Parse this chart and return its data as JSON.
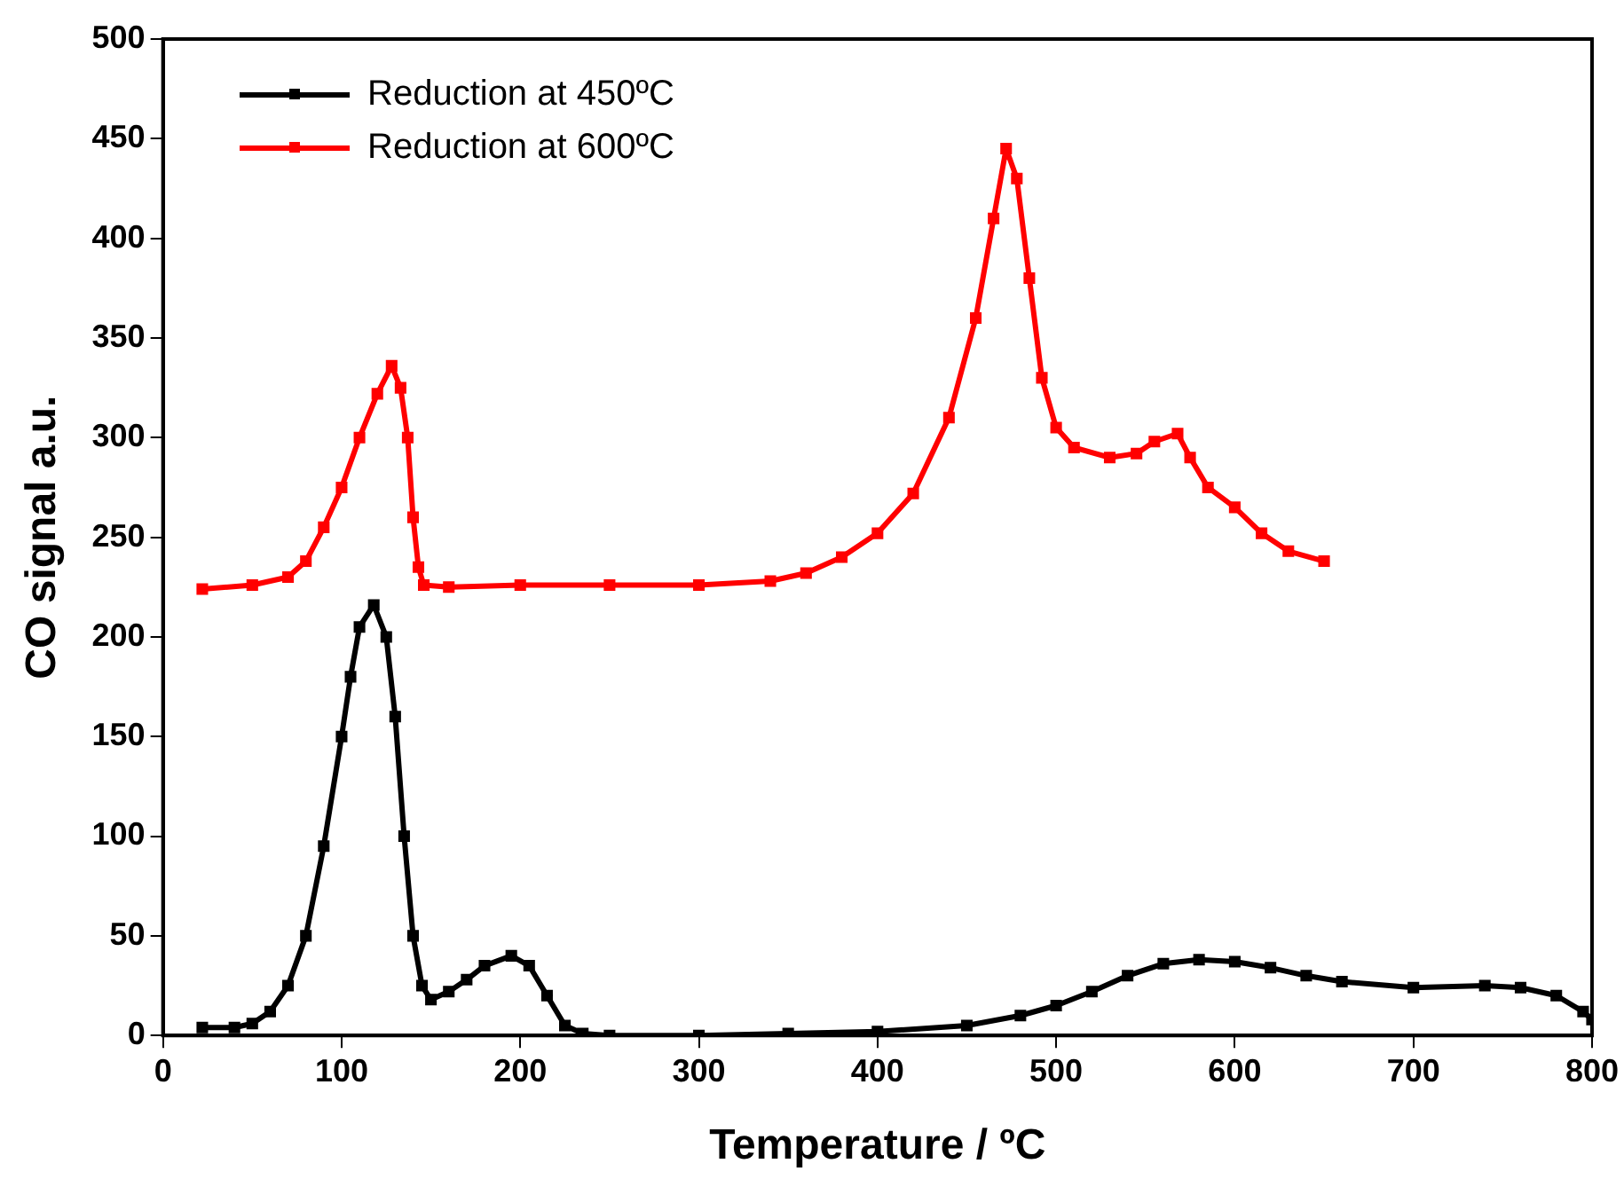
{
  "chart_data": {
    "type": "line",
    "xlabel": "Temperature / ºC",
    "ylabel": "CO signal a.u.",
    "xlim": [
      0,
      800
    ],
    "ylim": [
      0,
      500
    ],
    "xticks": [
      0,
      100,
      200,
      300,
      400,
      500,
      600,
      700,
      800
    ],
    "yticks": [
      0,
      50,
      100,
      150,
      200,
      250,
      300,
      350,
      400,
      450,
      500
    ],
    "grid": false,
    "legend": "top left",
    "marker": "square",
    "line_style": "solid",
    "series": [
      {
        "name": "Reduction at 450ºC",
        "color": "#000000",
        "x": [
          22,
          40,
          50,
          60,
          70,
          80,
          90,
          100,
          105,
          110,
          118,
          125,
          130,
          135,
          140,
          145,
          150,
          160,
          170,
          180,
          195,
          205,
          215,
          225,
          235,
          250,
          300,
          350,
          400,
          450,
          480,
          500,
          520,
          540,
          560,
          580,
          600,
          620,
          640,
          660,
          700,
          740,
          760,
          780,
          795,
          800
        ],
        "values": [
          4,
          4,
          6,
          12,
          25,
          50,
          95,
          150,
          180,
          205,
          216,
          200,
          160,
          100,
          50,
          25,
          18,
          22,
          28,
          35,
          40,
          35,
          20,
          5,
          1,
          0,
          0,
          1,
          2,
          5,
          10,
          15,
          22,
          30,
          36,
          38,
          37,
          34,
          30,
          27,
          24,
          25,
          24,
          20,
          12,
          8
        ]
      },
      {
        "name": "Reduction at 600ºC",
        "color": "#ff0000",
        "x": [
          22,
          50,
          70,
          80,
          90,
          100,
          110,
          120,
          128,
          133,
          137,
          140,
          143,
          146,
          160,
          200,
          250,
          300,
          340,
          360,
          380,
          400,
          420,
          440,
          455,
          465,
          472,
          478,
          485,
          492,
          500,
          510,
          530,
          545,
          555,
          568,
          575,
          585,
          600,
          615,
          630,
          650
        ],
        "values": [
          224,
          226,
          230,
          238,
          255,
          275,
          300,
          322,
          336,
          325,
          300,
          260,
          235,
          226,
          225,
          226,
          226,
          226,
          228,
          232,
          240,
          252,
          272,
          310,
          360,
          410,
          445,
          430,
          380,
          330,
          305,
          295,
          290,
          292,
          298,
          302,
          290,
          275,
          265,
          252,
          243,
          238
        ]
      }
    ]
  }
}
